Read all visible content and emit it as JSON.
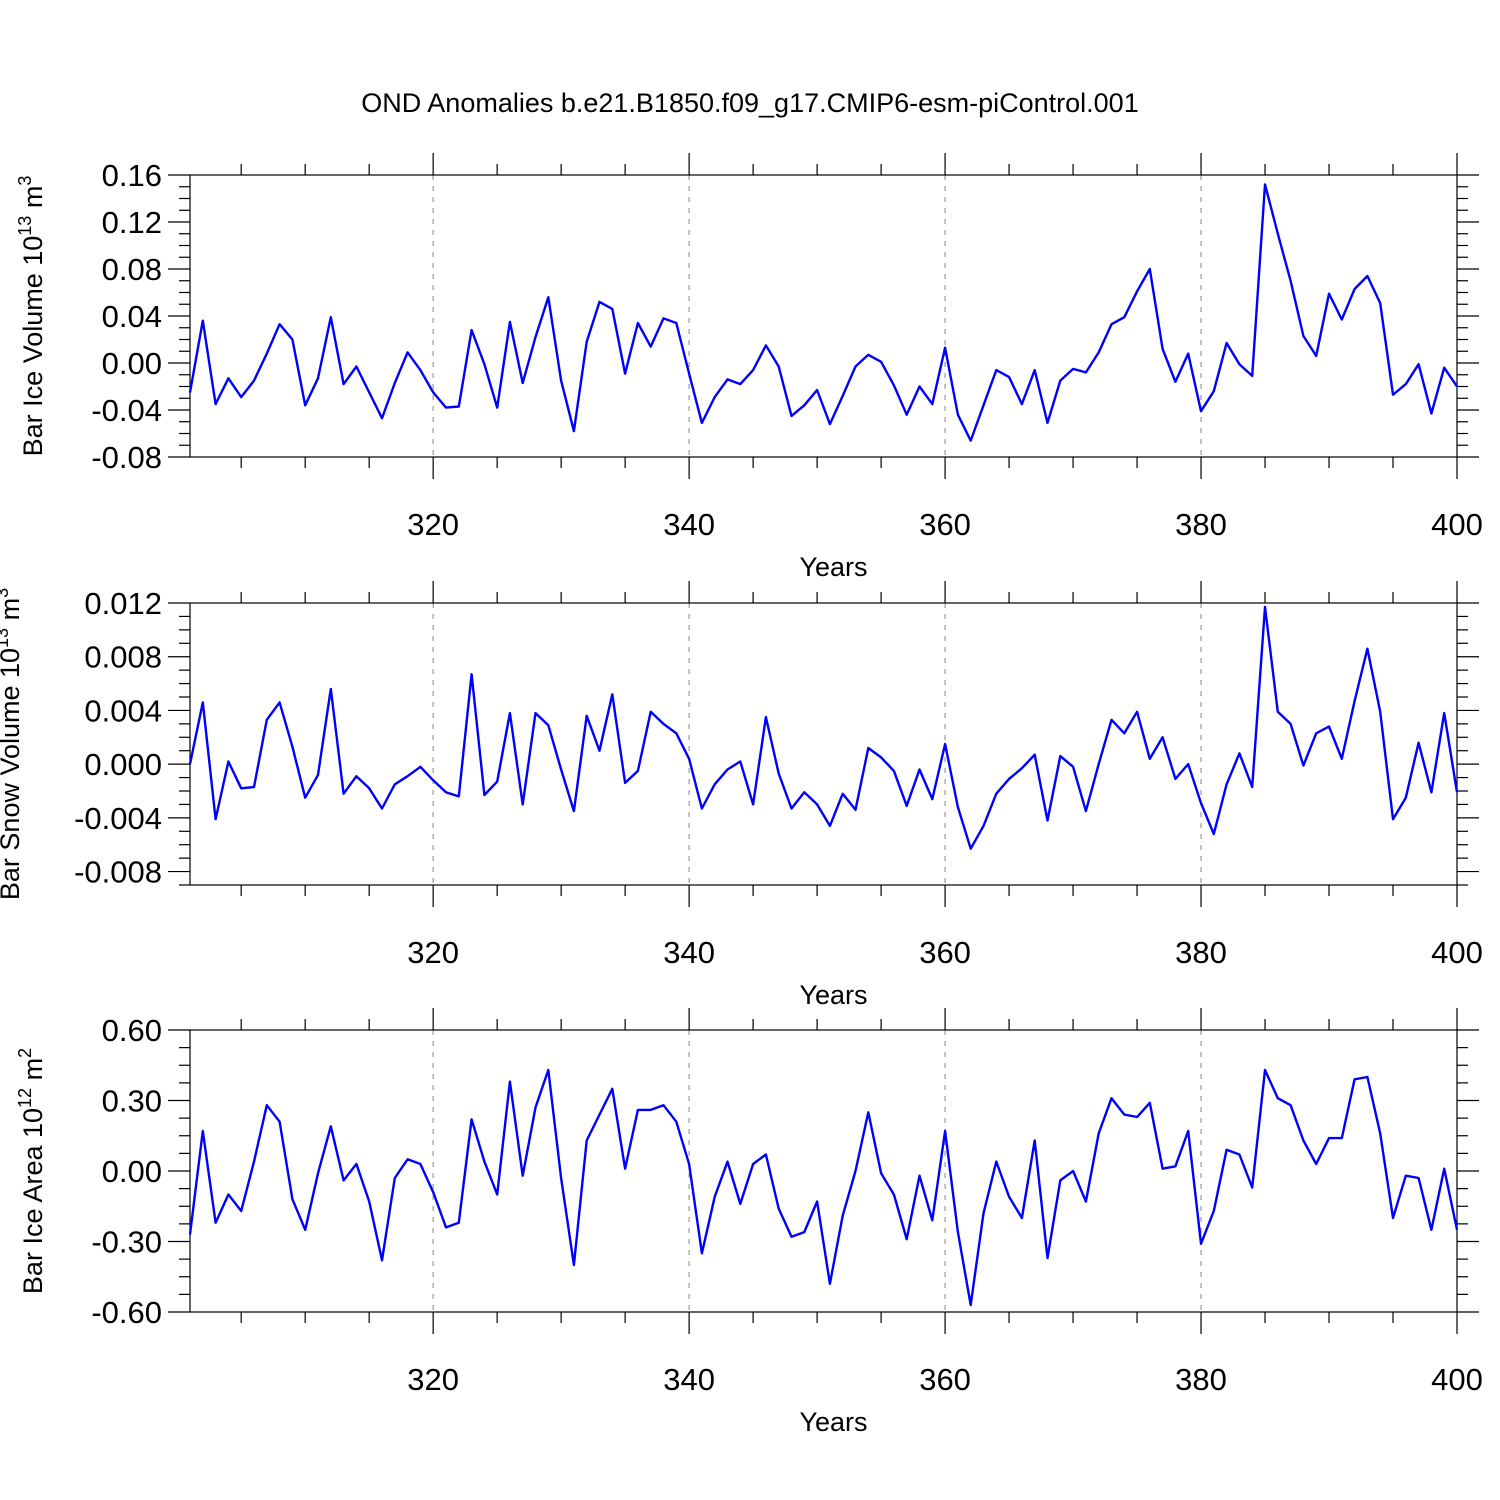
{
  "title": "OND Anomalies b.e21.B1850.f09_g17.CMIP6-esm-piControl.001",
  "colors": {
    "line": "#0000ff",
    "axis": "#000000",
    "grid": "#999999",
    "background": "#ffffff"
  },
  "chart_data": [
    {
      "type": "line",
      "ylabel": {
        "main": "Bar Ice Volume 10",
        "exp": "13",
        "unit": " m",
        "unit_exp": "3"
      },
      "xlabel": "Years",
      "x_start": 301,
      "xlim": [
        301,
        400
      ],
      "ylim": [
        -0.08,
        0.16
      ],
      "x_ticks": [
        "320",
        "340",
        "360",
        "380",
        "400"
      ],
      "y_ticks": [
        "-0.08",
        "-0.04",
        "0.00",
        "0.04",
        "0.08",
        "0.12",
        "0.16"
      ],
      "grid": "vertical dashed at labeled x ticks",
      "series": [
        {
          "values": [
            -0.025,
            0.036,
            -0.035,
            -0.013,
            -0.029,
            -0.015,
            0.008,
            0.033,
            0.02,
            -0.036,
            -0.013,
            0.039,
            -0.018,
            -0.003,
            -0.025,
            -0.047,
            -0.017,
            0.009,
            -0.006,
            -0.025,
            -0.038,
            -0.037,
            0.028,
            -0.001,
            -0.038,
            0.035,
            -0.017,
            0.022,
            0.056,
            -0.015,
            -0.058,
            0.018,
            0.052,
            0.046,
            -0.009,
            0.034,
            0.014,
            0.038,
            0.034,
            -0.009,
            -0.051,
            -0.029,
            -0.014,
            -0.018,
            -0.006,
            0.015,
            -0.003,
            -0.045,
            -0.036,
            -0.023,
            -0.052,
            -0.028,
            -0.003,
            0.007,
            0.001,
            -0.019,
            -0.044,
            -0.02,
            -0.035,
            0.013,
            -0.044,
            -0.066,
            -0.036,
            -0.006,
            -0.012,
            -0.035,
            -0.006,
            -0.051,
            -0.015,
            -0.005,
            -0.008,
            0.009,
            0.033,
            0.039,
            0.061,
            0.08,
            0.012,
            -0.016,
            0.008,
            -0.041,
            -0.024,
            0.017,
            -0.001,
            -0.011,
            0.152,
            0.11,
            0.07,
            0.023,
            0.006,
            0.059,
            0.037,
            0.063,
            0.074,
            0.051,
            -0.027,
            -0.018,
            -0.001,
            -0.043,
            -0.004,
            -0.02
          ]
        }
      ]
    },
    {
      "type": "line",
      "ylabel": {
        "main": "Bar Snow Volume 10",
        "exp": "13",
        "unit": " m",
        "unit_exp": "3"
      },
      "xlabel": "Years",
      "x_start": 301,
      "xlim": [
        301,
        400
      ],
      "ylim": [
        -0.009,
        0.012
      ],
      "x_ticks": [
        "320",
        "340",
        "360",
        "380",
        "400"
      ],
      "y_ticks": [
        "-0.008",
        "-0.004",
        "0.000",
        "0.004",
        "0.008",
        "0.012"
      ],
      "grid": "vertical dashed at labeled x ticks",
      "series": [
        {
          "values": [
            0.0,
            0.0046,
            -0.0041,
            0.0002,
            -0.0018,
            -0.0017,
            0.0033,
            0.0046,
            0.0013,
            -0.0025,
            -0.0008,
            0.0056,
            -0.0022,
            -0.0009,
            -0.0018,
            -0.0033,
            -0.0015,
            -0.0009,
            -0.0002,
            -0.0012,
            -0.0021,
            -0.0024,
            0.0067,
            -0.0023,
            -0.0013,
            0.0038,
            -0.003,
            0.0038,
            0.0029,
            -0.0004,
            -0.0035,
            0.0036,
            0.001,
            0.0052,
            -0.0014,
            -0.0005,
            0.0039,
            0.003,
            0.0023,
            0.0004,
            -0.0033,
            -0.0015,
            -0.0004,
            0.0002,
            -0.003,
            0.0035,
            -0.0007,
            -0.0033,
            -0.0021,
            -0.003,
            -0.0046,
            -0.0022,
            -0.0034,
            0.0012,
            0.0005,
            -0.0005,
            -0.0031,
            -0.0004,
            -0.0026,
            0.0015,
            -0.0032,
            -0.0063,
            -0.0046,
            -0.0022,
            -0.0011,
            -0.0003,
            0.0007,
            -0.0042,
            0.0006,
            -0.0002,
            -0.0035,
            0.0,
            0.0033,
            0.0023,
            0.0039,
            0.0004,
            0.002,
            -0.0011,
            0.0,
            -0.0029,
            -0.0052,
            -0.0015,
            0.0008,
            -0.0017,
            0.0117,
            0.0039,
            0.003,
            -0.0001,
            0.0023,
            0.0028,
            0.0004,
            0.0047,
            0.0086,
            0.0039,
            -0.0041,
            -0.0025,
            0.0016,
            -0.0021,
            0.0038,
            -0.0021
          ]
        }
      ]
    },
    {
      "type": "line",
      "ylabel": {
        "main": "Bar Ice Area 10",
        "exp": "12",
        "unit": " m",
        "unit_exp": "2"
      },
      "xlabel": "Years",
      "x_start": 301,
      "xlim": [
        301,
        400
      ],
      "ylim": [
        -0.6,
        0.6
      ],
      "x_ticks": [
        "320",
        "340",
        "360",
        "380",
        "400"
      ],
      "y_ticks": [
        "-0.60",
        "-0.30",
        "0.00",
        "0.30",
        "0.60"
      ],
      "grid": "vertical dashed at labeled x ticks",
      "series": [
        {
          "values": [
            -0.27,
            0.17,
            -0.22,
            -0.1,
            -0.17,
            0.04,
            0.28,
            0.21,
            -0.12,
            -0.25,
            -0.01,
            0.19,
            -0.04,
            0.03,
            -0.13,
            -0.38,
            -0.03,
            0.05,
            0.03,
            -0.09,
            -0.24,
            -0.22,
            0.22,
            0.04,
            -0.1,
            0.38,
            -0.02,
            0.27,
            0.43,
            -0.03,
            -0.4,
            0.13,
            0.24,
            0.35,
            0.01,
            0.26,
            0.26,
            0.28,
            0.21,
            0.03,
            -0.35,
            -0.11,
            0.04,
            -0.14,
            0.03,
            0.07,
            -0.16,
            -0.28,
            -0.26,
            -0.13,
            -0.48,
            -0.19,
            0.0,
            0.25,
            -0.01,
            -0.1,
            -0.29,
            -0.02,
            -0.21,
            0.17,
            -0.26,
            -0.57,
            -0.18,
            0.04,
            -0.11,
            -0.2,
            0.13,
            -0.37,
            -0.04,
            0.0,
            -0.13,
            0.16,
            0.31,
            0.24,
            0.23,
            0.29,
            0.01,
            0.02,
            0.17,
            -0.31,
            -0.17,
            0.09,
            0.07,
            -0.07,
            0.43,
            0.31,
            0.28,
            0.13,
            0.03,
            0.14,
            0.14,
            0.39,
            0.4,
            0.16,
            -0.2,
            -0.02,
            -0.03,
            -0.25,
            0.01,
            -0.25
          ]
        }
      ]
    }
  ]
}
